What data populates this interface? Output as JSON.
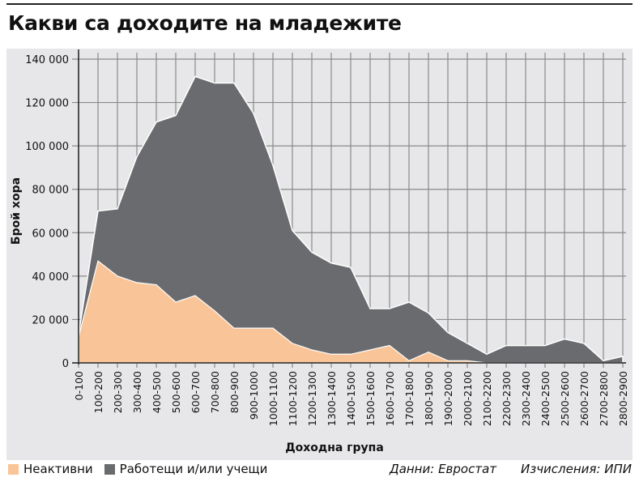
{
  "title": "Какви са доходите на младежите",
  "chart_data": {
    "type": "area",
    "stacked": true,
    "title": "Какви са доходите на младежите",
    "xlabel": "Доходна група",
    "ylabel": "Брой хора",
    "ylim": [
      0,
      140000
    ],
    "yticks": [
      0,
      20000,
      40000,
      60000,
      80000,
      100000,
      120000,
      140000
    ],
    "ytick_labels": [
      "0",
      "20 000",
      "40 000",
      "60 000",
      "80 000",
      "100 000",
      "120 000",
      "140 000"
    ],
    "grid": true,
    "legend_position": "bottom-left",
    "categories": [
      "0-100",
      "100-200",
      "200-300",
      "300-400",
      "400-500",
      "500-600",
      "600-700",
      "700-800",
      "800-900",
      "900-1000",
      "1000-1100",
      "1100-1200",
      "1200-1300",
      "1300-1400",
      "1400-1500",
      "1500-1600",
      "1600-1700",
      "1700-1800",
      "1800-1900",
      "1900-2000",
      "2000-2100",
      "2100-2200",
      "2200-2300",
      "2300-2400",
      "2400-2500",
      "2500-2600",
      "2600-2700",
      "2700-2800",
      "2800-2900"
    ],
    "series": [
      {
        "name": "Неактивни",
        "color": "#f9c598",
        "values": [
          12000,
          47000,
          40000,
          37000,
          36000,
          28000,
          31000,
          24000,
          16000,
          16000,
          16000,
          9000,
          6000,
          4000,
          4000,
          6000,
          8000,
          1000,
          5000,
          1000,
          1000,
          0,
          0,
          0,
          0,
          0,
          0,
          0,
          0
        ]
      },
      {
        "name": "Работещи и/или учещи",
        "color": "#6a6b6e",
        "values": [
          1000,
          23000,
          31000,
          58000,
          75000,
          86000,
          101000,
          105000,
          113000,
          99000,
          75000,
          52000,
          45000,
          42000,
          40000,
          19000,
          17000,
          27000,
          18000,
          13000,
          8000,
          4000,
          8000,
          8000,
          8000,
          11000,
          9000,
          1000,
          3000
        ]
      }
    ]
  },
  "source": "Данни: Евростат",
  "calc": "Изчисления: ИПИ"
}
